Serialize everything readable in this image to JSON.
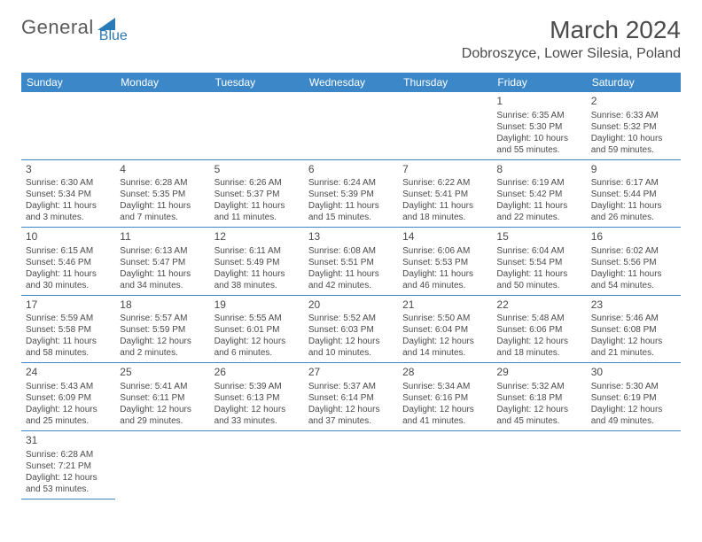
{
  "logo": {
    "general": "General",
    "blue": "Blue"
  },
  "title": "March 2024",
  "location": "Dobroszyce, Lower Silesia, Poland",
  "colors": {
    "header_bg": "#3b87c8",
    "header_text": "#ffffff",
    "text": "#4a4a4a",
    "logo_blue": "#2a7ab8"
  },
  "weekdays": [
    "Sunday",
    "Monday",
    "Tuesday",
    "Wednesday",
    "Thursday",
    "Friday",
    "Saturday"
  ],
  "weeks": [
    [
      null,
      null,
      null,
      null,
      null,
      {
        "d": "1",
        "sr": "Sunrise: 6:35 AM",
        "ss": "Sunset: 5:30 PM",
        "dl1": "Daylight: 10 hours",
        "dl2": "and 55 minutes."
      },
      {
        "d": "2",
        "sr": "Sunrise: 6:33 AM",
        "ss": "Sunset: 5:32 PM",
        "dl1": "Daylight: 10 hours",
        "dl2": "and 59 minutes."
      }
    ],
    [
      {
        "d": "3",
        "sr": "Sunrise: 6:30 AM",
        "ss": "Sunset: 5:34 PM",
        "dl1": "Daylight: 11 hours",
        "dl2": "and 3 minutes."
      },
      {
        "d": "4",
        "sr": "Sunrise: 6:28 AM",
        "ss": "Sunset: 5:35 PM",
        "dl1": "Daylight: 11 hours",
        "dl2": "and 7 minutes."
      },
      {
        "d": "5",
        "sr": "Sunrise: 6:26 AM",
        "ss": "Sunset: 5:37 PM",
        "dl1": "Daylight: 11 hours",
        "dl2": "and 11 minutes."
      },
      {
        "d": "6",
        "sr": "Sunrise: 6:24 AM",
        "ss": "Sunset: 5:39 PM",
        "dl1": "Daylight: 11 hours",
        "dl2": "and 15 minutes."
      },
      {
        "d": "7",
        "sr": "Sunrise: 6:22 AM",
        "ss": "Sunset: 5:41 PM",
        "dl1": "Daylight: 11 hours",
        "dl2": "and 18 minutes."
      },
      {
        "d": "8",
        "sr": "Sunrise: 6:19 AM",
        "ss": "Sunset: 5:42 PM",
        "dl1": "Daylight: 11 hours",
        "dl2": "and 22 minutes."
      },
      {
        "d": "9",
        "sr": "Sunrise: 6:17 AM",
        "ss": "Sunset: 5:44 PM",
        "dl1": "Daylight: 11 hours",
        "dl2": "and 26 minutes."
      }
    ],
    [
      {
        "d": "10",
        "sr": "Sunrise: 6:15 AM",
        "ss": "Sunset: 5:46 PM",
        "dl1": "Daylight: 11 hours",
        "dl2": "and 30 minutes."
      },
      {
        "d": "11",
        "sr": "Sunrise: 6:13 AM",
        "ss": "Sunset: 5:47 PM",
        "dl1": "Daylight: 11 hours",
        "dl2": "and 34 minutes."
      },
      {
        "d": "12",
        "sr": "Sunrise: 6:11 AM",
        "ss": "Sunset: 5:49 PM",
        "dl1": "Daylight: 11 hours",
        "dl2": "and 38 minutes."
      },
      {
        "d": "13",
        "sr": "Sunrise: 6:08 AM",
        "ss": "Sunset: 5:51 PM",
        "dl1": "Daylight: 11 hours",
        "dl2": "and 42 minutes."
      },
      {
        "d": "14",
        "sr": "Sunrise: 6:06 AM",
        "ss": "Sunset: 5:53 PM",
        "dl1": "Daylight: 11 hours",
        "dl2": "and 46 minutes."
      },
      {
        "d": "15",
        "sr": "Sunrise: 6:04 AM",
        "ss": "Sunset: 5:54 PM",
        "dl1": "Daylight: 11 hours",
        "dl2": "and 50 minutes."
      },
      {
        "d": "16",
        "sr": "Sunrise: 6:02 AM",
        "ss": "Sunset: 5:56 PM",
        "dl1": "Daylight: 11 hours",
        "dl2": "and 54 minutes."
      }
    ],
    [
      {
        "d": "17",
        "sr": "Sunrise: 5:59 AM",
        "ss": "Sunset: 5:58 PM",
        "dl1": "Daylight: 11 hours",
        "dl2": "and 58 minutes."
      },
      {
        "d": "18",
        "sr": "Sunrise: 5:57 AM",
        "ss": "Sunset: 5:59 PM",
        "dl1": "Daylight: 12 hours",
        "dl2": "and 2 minutes."
      },
      {
        "d": "19",
        "sr": "Sunrise: 5:55 AM",
        "ss": "Sunset: 6:01 PM",
        "dl1": "Daylight: 12 hours",
        "dl2": "and 6 minutes."
      },
      {
        "d": "20",
        "sr": "Sunrise: 5:52 AM",
        "ss": "Sunset: 6:03 PM",
        "dl1": "Daylight: 12 hours",
        "dl2": "and 10 minutes."
      },
      {
        "d": "21",
        "sr": "Sunrise: 5:50 AM",
        "ss": "Sunset: 6:04 PM",
        "dl1": "Daylight: 12 hours",
        "dl2": "and 14 minutes."
      },
      {
        "d": "22",
        "sr": "Sunrise: 5:48 AM",
        "ss": "Sunset: 6:06 PM",
        "dl1": "Daylight: 12 hours",
        "dl2": "and 18 minutes."
      },
      {
        "d": "23",
        "sr": "Sunrise: 5:46 AM",
        "ss": "Sunset: 6:08 PM",
        "dl1": "Daylight: 12 hours",
        "dl2": "and 21 minutes."
      }
    ],
    [
      {
        "d": "24",
        "sr": "Sunrise: 5:43 AM",
        "ss": "Sunset: 6:09 PM",
        "dl1": "Daylight: 12 hours",
        "dl2": "and 25 minutes."
      },
      {
        "d": "25",
        "sr": "Sunrise: 5:41 AM",
        "ss": "Sunset: 6:11 PM",
        "dl1": "Daylight: 12 hours",
        "dl2": "and 29 minutes."
      },
      {
        "d": "26",
        "sr": "Sunrise: 5:39 AM",
        "ss": "Sunset: 6:13 PM",
        "dl1": "Daylight: 12 hours",
        "dl2": "and 33 minutes."
      },
      {
        "d": "27",
        "sr": "Sunrise: 5:37 AM",
        "ss": "Sunset: 6:14 PM",
        "dl1": "Daylight: 12 hours",
        "dl2": "and 37 minutes."
      },
      {
        "d": "28",
        "sr": "Sunrise: 5:34 AM",
        "ss": "Sunset: 6:16 PM",
        "dl1": "Daylight: 12 hours",
        "dl2": "and 41 minutes."
      },
      {
        "d": "29",
        "sr": "Sunrise: 5:32 AM",
        "ss": "Sunset: 6:18 PM",
        "dl1": "Daylight: 12 hours",
        "dl2": "and 45 minutes."
      },
      {
        "d": "30",
        "sr": "Sunrise: 5:30 AM",
        "ss": "Sunset: 6:19 PM",
        "dl1": "Daylight: 12 hours",
        "dl2": "and 49 minutes."
      }
    ],
    [
      {
        "d": "31",
        "sr": "Sunrise: 6:28 AM",
        "ss": "Sunset: 7:21 PM",
        "dl1": "Daylight: 12 hours",
        "dl2": "and 53 minutes."
      },
      null,
      null,
      null,
      null,
      null,
      null
    ]
  ]
}
